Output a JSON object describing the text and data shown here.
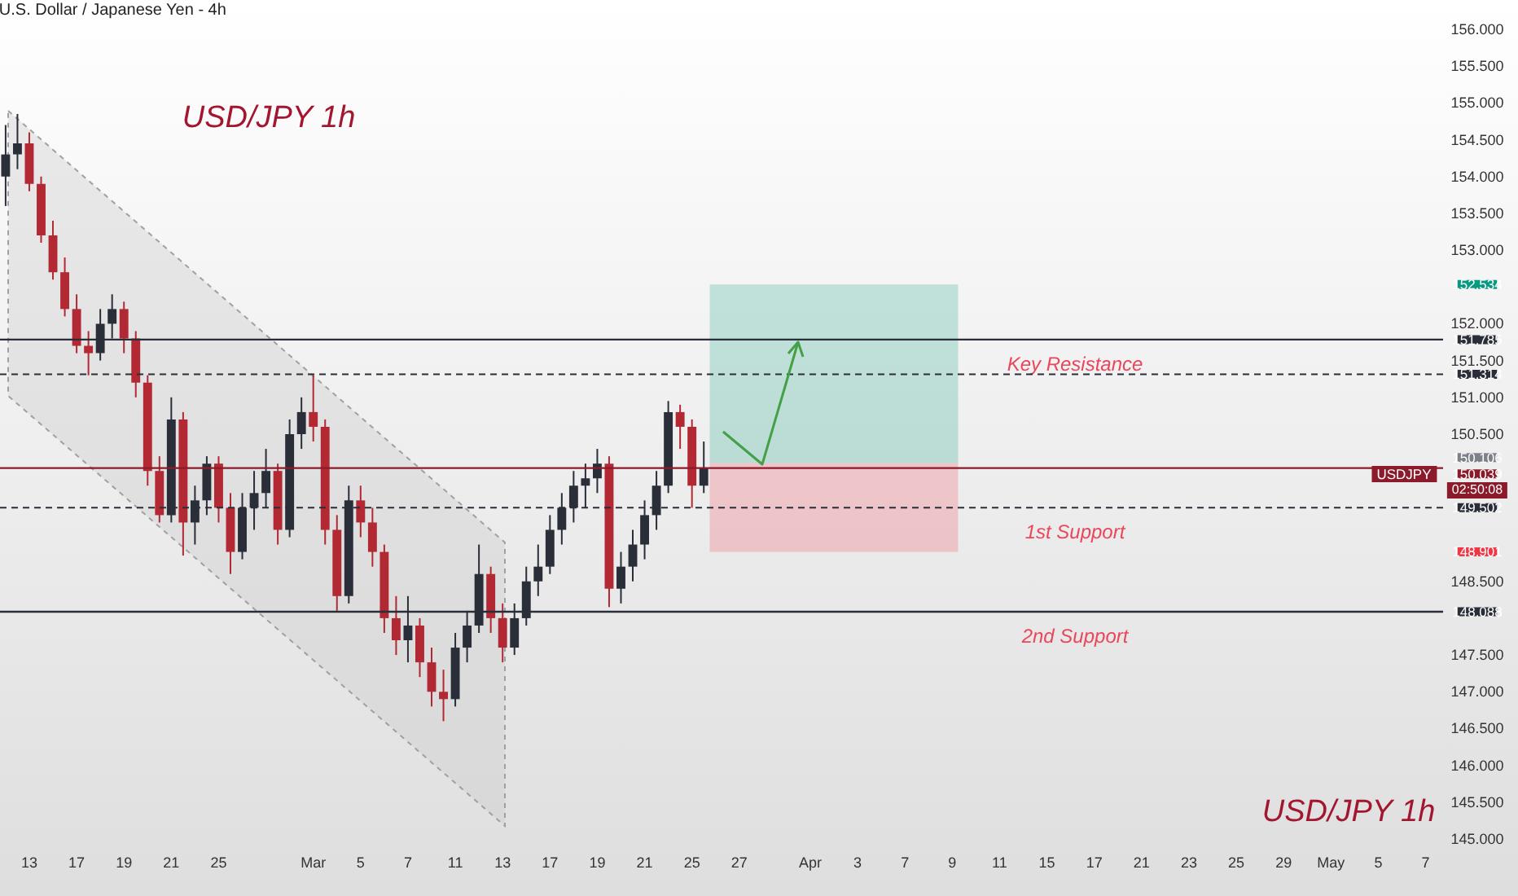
{
  "chart_data": {
    "type": "candlestick",
    "title": "U.S. Dollar / Japanese Yen - 4h",
    "categories": [
      null,
      null,
      "13",
      null,
      null,
      null,
      "17",
      null,
      null,
      null,
      "19",
      null,
      null,
      null,
      "21",
      null,
      null,
      null,
      "25",
      null,
      null,
      null,
      null,
      null,
      null,
      null,
      "Mar",
      null,
      null,
      null,
      "5",
      null,
      null,
      null,
      "7",
      null,
      null,
      null,
      "11",
      null,
      null,
      null,
      "13",
      null,
      null,
      null,
      "17",
      null,
      null,
      null,
      "19",
      null,
      null,
      null,
      "21",
      null,
      null,
      null,
      "25",
      null,
      null,
      null,
      "27",
      null,
      null,
      null,
      null,
      null,
      "Apr",
      null,
      null,
      null,
      "3",
      null,
      null,
      null,
      "7",
      null,
      null,
      null,
      "9",
      null,
      null,
      null,
      "11",
      null,
      null,
      null,
      "15",
      null,
      null,
      null,
      "17",
      null,
      null,
      null,
      "21",
      null,
      null,
      null,
      "23",
      null,
      null,
      null,
      "25",
      null,
      null,
      null,
      "29",
      null,
      null,
      null,
      "May",
      null,
      null,
      null,
      "5",
      null,
      null,
      null,
      "7",
      null
    ],
    "ohlc": [
      [
        154.0,
        154.7,
        153.6,
        154.3
      ],
      [
        154.3,
        154.85,
        154.1,
        154.45
      ],
      [
        154.45,
        154.6,
        153.8,
        153.9
      ],
      [
        153.9,
        154.0,
        153.1,
        153.2
      ],
      [
        153.2,
        153.4,
        152.6,
        152.7
      ],
      [
        152.7,
        152.9,
        152.1,
        152.2
      ],
      [
        152.2,
        152.4,
        151.6,
        151.7
      ],
      [
        151.7,
        151.9,
        151.3,
        151.6
      ],
      [
        151.6,
        152.2,
        151.5,
        152.0
      ],
      [
        152.0,
        152.4,
        151.8,
        152.2
      ],
      [
        152.2,
        152.3,
        151.6,
        151.8
      ],
      [
        151.8,
        151.9,
        151.0,
        151.2
      ],
      [
        151.2,
        151.3,
        149.8,
        150.0
      ],
      [
        150.0,
        150.2,
        149.3,
        149.4
      ],
      [
        149.4,
        151.0,
        149.3,
        150.7
      ],
      [
        150.7,
        150.8,
        148.85,
        149.3
      ],
      [
        149.3,
        149.8,
        149.0,
        149.6
      ],
      [
        149.6,
        150.2,
        149.4,
        150.1
      ],
      [
        150.1,
        150.2,
        149.3,
        149.5
      ],
      [
        149.5,
        149.7,
        148.6,
        148.9
      ],
      [
        148.9,
        149.7,
        148.8,
        149.5
      ],
      [
        149.5,
        150.0,
        149.2,
        149.7
      ],
      [
        149.7,
        150.3,
        149.5,
        150.0
      ],
      [
        150.0,
        150.1,
        149.0,
        149.2
      ],
      [
        149.2,
        150.7,
        149.1,
        150.5
      ],
      [
        150.5,
        151.0,
        150.3,
        150.8
      ],
      [
        150.8,
        151.3,
        150.4,
        150.6
      ],
      [
        150.6,
        150.7,
        149.0,
        149.2
      ],
      [
        149.2,
        149.4,
        148.1,
        148.3
      ],
      [
        148.3,
        149.8,
        148.2,
        149.6
      ],
      [
        149.6,
        149.8,
        149.1,
        149.3
      ],
      [
        149.3,
        149.5,
        148.7,
        148.9
      ],
      [
        148.9,
        149.0,
        147.8,
        148.0
      ],
      [
        148.0,
        148.3,
        147.5,
        147.7
      ],
      [
        147.7,
        148.3,
        147.4,
        147.9
      ],
      [
        147.9,
        148.0,
        147.2,
        147.4
      ],
      [
        147.4,
        147.6,
        146.8,
        147.0
      ],
      [
        147.0,
        147.3,
        146.6,
        146.9
      ],
      [
        146.9,
        147.8,
        146.8,
        147.6
      ],
      [
        147.6,
        148.1,
        147.4,
        147.9
      ],
      [
        147.9,
        149.0,
        147.8,
        148.6
      ],
      [
        148.6,
        148.7,
        147.8,
        148.0
      ],
      [
        148.0,
        148.2,
        147.4,
        147.6
      ],
      [
        147.6,
        148.2,
        147.5,
        148.0
      ],
      [
        148.0,
        148.7,
        147.9,
        148.5
      ],
      [
        148.5,
        149.0,
        148.3,
        148.7
      ],
      [
        148.7,
        149.4,
        148.6,
        149.2
      ],
      [
        149.2,
        149.7,
        149.0,
        149.5
      ],
      [
        149.5,
        150.0,
        149.3,
        149.8
      ],
      [
        149.8,
        150.1,
        149.5,
        149.9
      ],
      [
        149.9,
        150.3,
        149.7,
        150.1
      ],
      [
        150.1,
        150.2,
        148.15,
        148.4
      ],
      [
        148.4,
        148.9,
        148.2,
        148.7
      ],
      [
        148.7,
        149.2,
        148.5,
        149.0
      ],
      [
        149.0,
        149.6,
        148.8,
        149.4
      ],
      [
        149.4,
        150.0,
        149.2,
        149.8
      ],
      [
        149.8,
        150.95,
        149.7,
        150.8
      ],
      [
        150.8,
        150.9,
        150.3,
        150.6
      ],
      [
        150.6,
        150.7,
        149.5,
        149.8
      ],
      [
        149.8,
        150.4,
        149.7,
        150.04
      ],
      null,
      null,
      null,
      null,
      null,
      null,
      null,
      null,
      null,
      null,
      null,
      null,
      null,
      null,
      null,
      null,
      null,
      null,
      null,
      null,
      null,
      null,
      null,
      null,
      null,
      null,
      null,
      null,
      null,
      null,
      null,
      null,
      null,
      null,
      null,
      null,
      null,
      null,
      null,
      null,
      null,
      null,
      null,
      null,
      null,
      null,
      null,
      null,
      null,
      null,
      null,
      null,
      null,
      null,
      null,
      null,
      null,
      null,
      null,
      null,
      null,
      null
    ],
    "colors": [
      "#2a2e39",
      "#2a2e39",
      "#b22833",
      "#b22833",
      "#b22833",
      "#b22833",
      "#b22833",
      "#b22833",
      "#2a2e39",
      "#2a2e39",
      "#b22833",
      "#b22833",
      "#b22833",
      "#b22833",
      "#2a2e39",
      "#b22833",
      "#2a2e39",
      "#2a2e39",
      "#b22833",
      "#b22833",
      "#2a2e39",
      "#2a2e39",
      "#2a2e39",
      "#b22833",
      "#2a2e39",
      "#2a2e39",
      "#b22833",
      "#b22833",
      "#b22833",
      "#2a2e39",
      "#b22833",
      "#b22833",
      "#b22833",
      "#b22833",
      "#2a2e39",
      "#b22833",
      "#b22833",
      "#b22833",
      "#2a2e39",
      "#2a2e39",
      "#2a2e39",
      "#b22833",
      "#b22833",
      "#2a2e39",
      "#2a2e39",
      "#2a2e39",
      "#2a2e39",
      "#2a2e39",
      "#2a2e39",
      "#2a2e39",
      "#2a2e39",
      "#b22833",
      "#2a2e39",
      "#2a2e39",
      "#2a2e39",
      "#2a2e39",
      "#2a2e39",
      "#b22833",
      "#b22833",
      "#2a2e39",
      null,
      null,
      null,
      null,
      null,
      null,
      null,
      null,
      null,
      null,
      null,
      null,
      null,
      null,
      null,
      null,
      null,
      null,
      null,
      null,
      null,
      null,
      null,
      null,
      null,
      null,
      null,
      null,
      null,
      null,
      null,
      null,
      null,
      null,
      null,
      null,
      null,
      null,
      null,
      null,
      null,
      null,
      null,
      null,
      null,
      null,
      null,
      null,
      null,
      null,
      null,
      null,
      null,
      null,
      null,
      null,
      null,
      null,
      null,
      null,
      null,
      null
    ],
    "ylim": [
      145,
      156
    ],
    "yticks": [
      {
        "value": 145,
        "label": "145.000"
      },
      {
        "value": 145.5,
        "label": "145.500"
      },
      {
        "value": 146,
        "label": "146.000"
      },
      {
        "value": 146.5,
        "label": "146.500"
      },
      {
        "value": 147,
        "label": "147.000"
      },
      {
        "value": 147.5,
        "label": "147.500"
      },
      148.088,
      {
        "value": 148.5,
        "label": "148.500"
      },
      148.901,
      149.502,
      150.039,
      150.106,
      {
        "value": 150.5,
        "label": "150.500"
      },
      {
        "value": 151,
        "label": "151.000"
      },
      151.314,
      {
        "value": 151.5,
        "label": "151.500"
      },
      151.785,
      {
        "value": 152,
        "label": "152.000"
      },
      152.534,
      {
        "value": 153,
        "label": "153.000"
      },
      {
        "value": 153.5,
        "label": "153.500"
      },
      {
        "value": 154,
        "label": "154.000"
      },
      {
        "value": 154.5,
        "label": "154.500"
      },
      {
        "value": 155,
        "label": "155.000"
      },
      {
        "value": 155.5,
        "label": "155.500"
      },
      {
        "value": 156,
        "label": "156.000"
      }
    ],
    "ref_lines": [
      {
        "axis": "y",
        "value": 151.785,
        "label": "Key Resistance",
        "color": "#2a2e39",
        "line_style": "solid"
      },
      {
        "axis": "y",
        "value": 151.314,
        "color": "#2a2e39",
        "line_style": "dashed"
      },
      {
        "axis": "y",
        "value": 150.039,
        "color": "#8b1a2b",
        "line_style": "solid"
      },
      {
        "axis": "y",
        "value": 149.502,
        "label": "1st Support",
        "color": "#2a2e39",
        "line_style": "dashed"
      },
      {
        "axis": "y",
        "value": 148.088,
        "label": "2nd Support",
        "color": "#2a2e39",
        "line_style": "solid"
      }
    ],
    "bands": [
      {
        "axis": "y",
        "from": 150.106,
        "to": 152.534,
        "color": "#089981"
      },
      {
        "axis": "y",
        "from": 148.901,
        "to": 150.106,
        "color": "#f23645"
      }
    ],
    "annotations": [
      "USD/JPY 1h",
      "USD/JPY 1h",
      "USDJPY",
      "02:50:08"
    ]
  }
}
